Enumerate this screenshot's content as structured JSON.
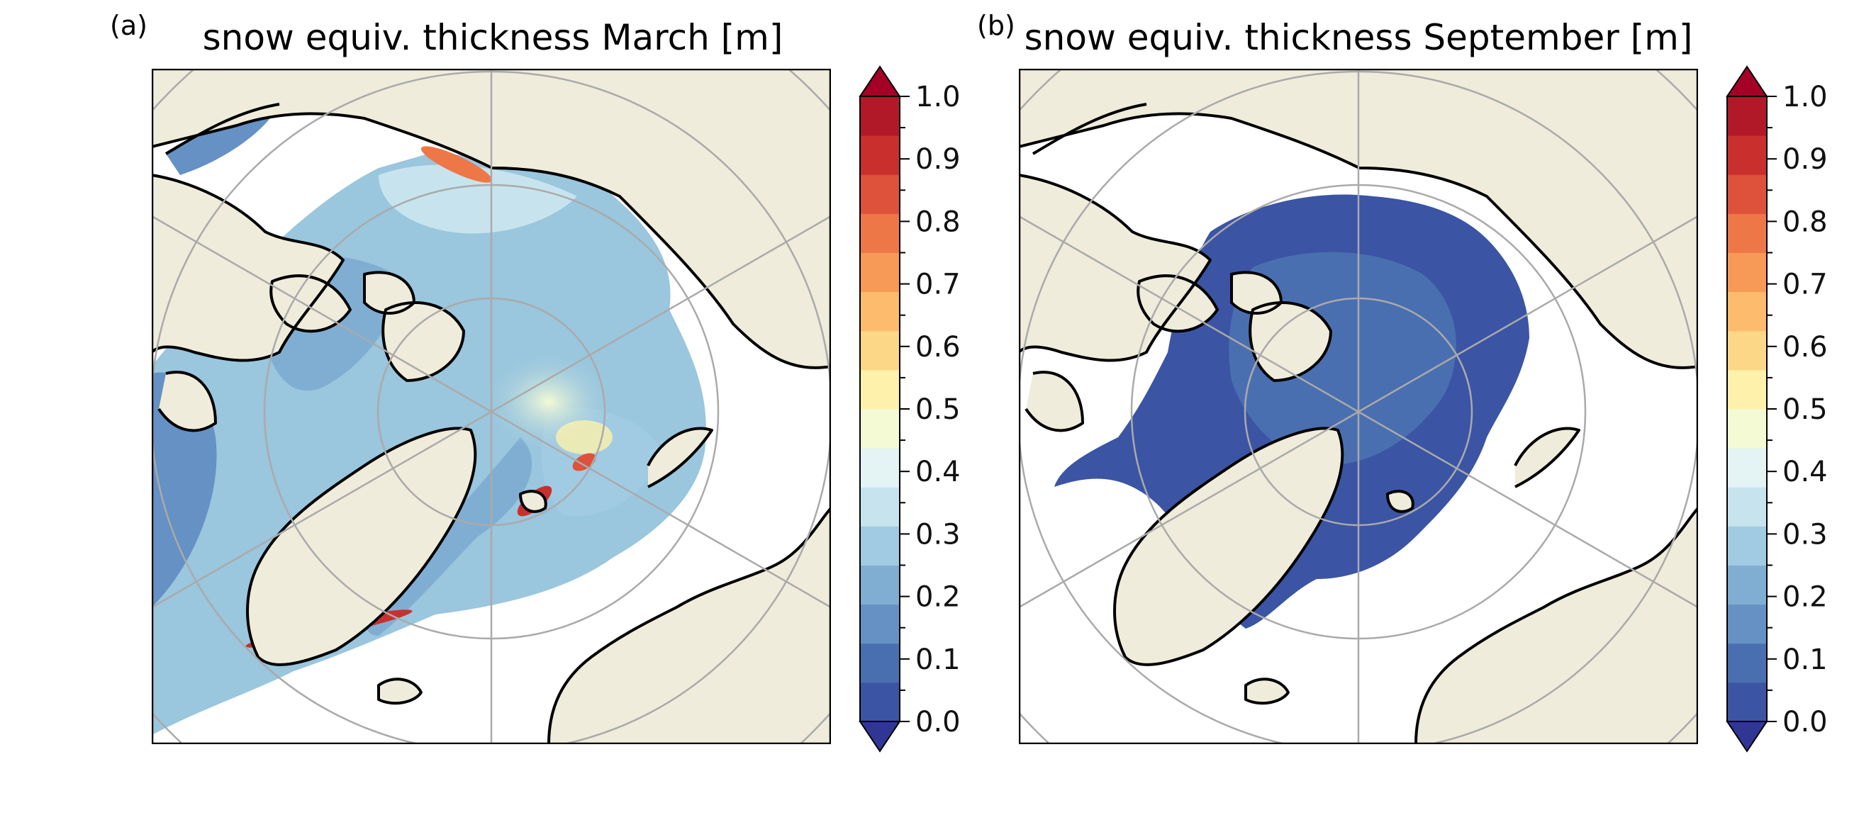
{
  "figure": {
    "panels": [
      {
        "letter": "(a)",
        "title": "snow equiv. thickness March [m]",
        "colorbar_ticks": [
          "0.0",
          "0.1",
          "0.2",
          "0.3",
          "0.4",
          "0.5",
          "0.6",
          "0.7",
          "0.8",
          "0.9",
          "1.0"
        ]
      },
      {
        "letter": "(b)",
        "title": "snow equiv. thickness September [m]",
        "colorbar_ticks": [
          "0.0",
          "0.1",
          "0.2",
          "0.3",
          "0.4",
          "0.5",
          "0.6",
          "0.7",
          "0.8",
          "0.9",
          "1.0"
        ]
      }
    ]
  },
  "chart_data": [
    {
      "type": "heatmap",
      "title": "snow equiv. thickness March [m]",
      "projection": "north-polar-stereographic",
      "colormap": "RdYlBu_r",
      "colorbar_range": [
        0.0,
        1.0
      ],
      "colorbar_step": 0.05,
      "colorbar_extend": "both",
      "land_color": "#efecdc",
      "grid": true,
      "colorbar_colors": [
        "#3b54a4",
        "#4a6fb0",
        "#6591c4",
        "#80aed3",
        "#a1cbe2",
        "#c7e4ee",
        "#e4f3f3",
        "#f4fad4",
        "#fdf1ac",
        "#fdd788",
        "#fcbb6d",
        "#f89a57",
        "#ee7748",
        "#de513b",
        "#c9302d",
        "#b11929"
      ],
      "colorbar_under": "#313695",
      "colorbar_over": "#a50026"
    },
    {
      "type": "heatmap",
      "title": "snow equiv. thickness September [m]",
      "projection": "north-polar-stereographic",
      "colormap": "RdYlBu_r",
      "colorbar_range": [
        0.0,
        1.0
      ],
      "colorbar_step": 0.05,
      "colorbar_extend": "both",
      "land_color": "#efecdc",
      "grid": true,
      "colorbar_colors": [
        "#3b54a4",
        "#4a6fb0",
        "#6591c4",
        "#80aed3",
        "#a1cbe2",
        "#c7e4ee",
        "#e4f3f3",
        "#f4fad4",
        "#fdf1ac",
        "#fdd788",
        "#fcbb6d",
        "#f89a57",
        "#ee7748",
        "#de513b",
        "#c9302d",
        "#b11929"
      ],
      "colorbar_under": "#313695",
      "colorbar_over": "#a50026"
    }
  ]
}
